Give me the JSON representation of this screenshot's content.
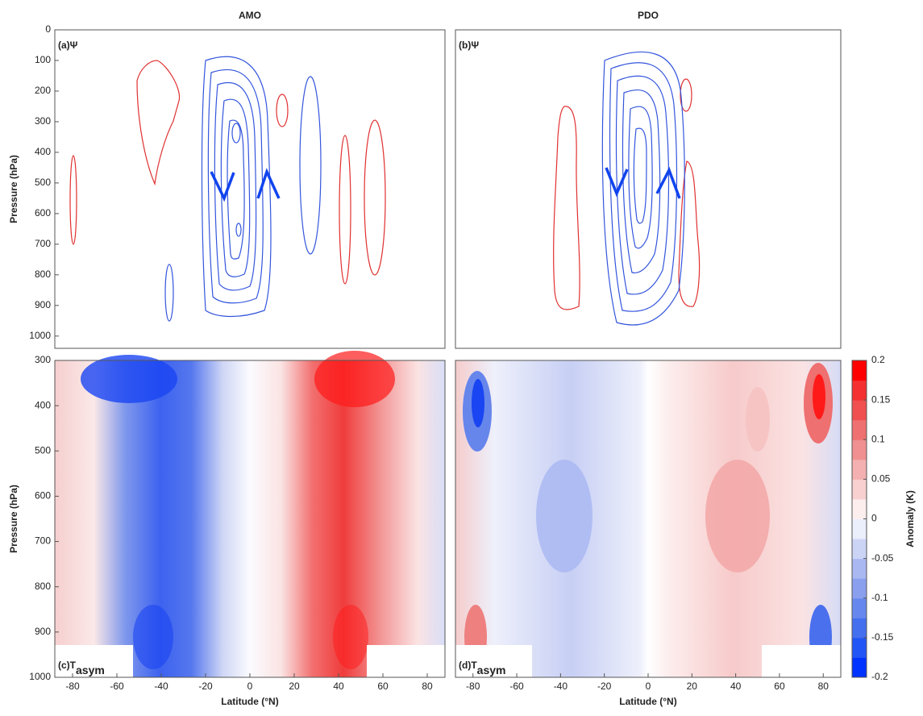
{
  "chart_data": [
    {
      "type": "contour",
      "title": "AMO",
      "panel_label": "(a)Ψ",
      "ylabel": "Pressure (hPa)",
      "xlim": [
        -88,
        88
      ],
      "ylim": [
        0,
        1040
      ],
      "y_inverted": true,
      "yticks": [
        0,
        100,
        200,
        300,
        400,
        500,
        600,
        700,
        800,
        900,
        1000
      ]
    },
    {
      "type": "contour",
      "title": "PDO",
      "panel_label": "(b)Ψ",
      "xlim": [
        -88,
        88
      ],
      "ylim": [
        0,
        1040
      ],
      "y_inverted": true
    },
    {
      "type": "contour",
      "panel_label": "(c)T",
      "panel_label_sub": "asym",
      "ylabel": "Pressure (hPa)",
      "xlabel": "Latitude (°N)",
      "xlim": [
        -88,
        88
      ],
      "ylim": [
        300,
        1000
      ],
      "y_inverted": true,
      "yticks": [
        300,
        400,
        500,
        600,
        700,
        800,
        900,
        1000
      ],
      "xticks": [
        -80,
        -60,
        -40,
        -20,
        0,
        20,
        40,
        60,
        80
      ]
    },
    {
      "type": "contour",
      "panel_label": "(d)T",
      "panel_label_sub": "asym",
      "xlabel": "Latitude (°N)",
      "xlim": [
        -88,
        88
      ],
      "ylim": [
        300,
        1000
      ],
      "y_inverted": true,
      "xticks": [
        -80,
        -60,
        -40,
        -20,
        0,
        20,
        40,
        60,
        80
      ]
    },
    {
      "type": "colorbar",
      "label": "Anomaly (K)",
      "clim": [
        -0.2,
        0.2
      ],
      "yticks": [
        -0.2,
        -0.15,
        -0.1,
        -0.05,
        0,
        0.05,
        0.1,
        0.15,
        0.2
      ],
      "colors": [
        "#0033ff",
        "#2255f5",
        "#4470f0",
        "#6688ee",
        "#8aa0ee",
        "#aab8f2",
        "#ccd4f6",
        "#ebeefb",
        "#fdeeee",
        "#f8d0d0",
        "#f4b0b0",
        "#f09090",
        "#ee7070",
        "#f05050",
        "#f43030",
        "#ff0000"
      ]
    }
  ]
}
